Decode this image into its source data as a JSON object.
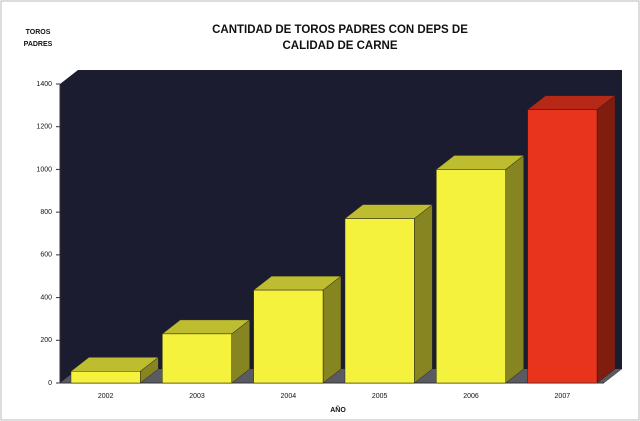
{
  "chart_data": {
    "type": "bar",
    "title": [
      "CANTIDAD DE TOROS PADRES CON DEPS DE",
      "CALIDAD DE CARNE"
    ],
    "y_label": [
      "TOROS",
      "PADRES"
    ],
    "x_label": "AÑO",
    "categories": [
      "2002",
      "2003",
      "2004",
      "2005",
      "2006",
      "2007"
    ],
    "values": [
      55,
      230,
      435,
      770,
      1000,
      1280
    ],
    "colors": [
      "#f4f23c",
      "#f4f23c",
      "#f4f23c",
      "#f4f23c",
      "#f4f23c",
      "#e8341c"
    ],
    "ylim": [
      0,
      1400
    ],
    "yticks": [
      0,
      200,
      400,
      600,
      800,
      1000,
      1200,
      1400
    ],
    "grid": false
  }
}
